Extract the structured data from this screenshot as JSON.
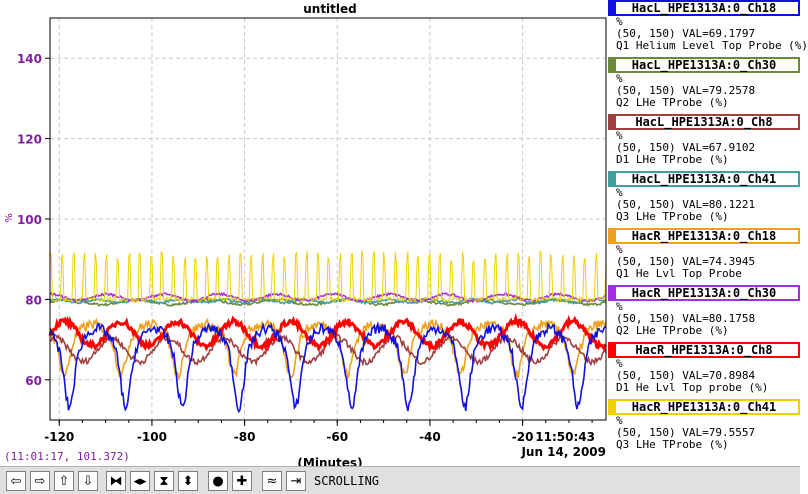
{
  "chart_data": {
    "type": "line",
    "title": "untitled",
    "ylabel": "%",
    "xlabel": "(Minutes)",
    "xlim": [
      -122,
      -2
    ],
    "ylim": [
      50,
      150
    ],
    "yticks": [
      60,
      80,
      100,
      120,
      140
    ],
    "xticks": [
      -120,
      -100,
      -80,
      -60,
      -40,
      -20
    ],
    "grid": true,
    "time_label": "11:50:43",
    "date_label": "Jun 14, 2009",
    "series": [
      {
        "name": "HacL_HPE1313A:0_Ch18",
        "color": "#1010e0",
        "shape": "dip",
        "base": 70,
        "amp": 14,
        "period": 12.2,
        "phase": 5
      },
      {
        "name": "HacL_HPE1313A:0_Ch30",
        "color": "#6a8a3a",
        "shape": "flat",
        "base": 79.3,
        "amp": 0.6,
        "period": 15,
        "phase": 0
      },
      {
        "name": "HacL_HPE1313A:0_Ch8",
        "color": "#a04040",
        "shape": "wave",
        "base": 67.5,
        "amp": 3,
        "period": 12.2,
        "phase": 2
      },
      {
        "name": "HacL_HPE1313A:0_Ch41",
        "color": "#40a0a0",
        "shape": "flat",
        "base": 79.6,
        "amp": 0.4,
        "period": 9,
        "phase": 1
      },
      {
        "name": "HacR_HPE1313A:0_Ch18",
        "color": "#f0a020",
        "shape": "dip",
        "base": 72,
        "amp": 9,
        "period": 12.2,
        "phase": 6
      },
      {
        "name": "HacR_HPE1313A:0_Ch30",
        "color": "#a030e0",
        "shape": "flat",
        "base": 80.5,
        "amp": 0.8,
        "period": 12.2,
        "phase": 3
      },
      {
        "name": "HacR_HPE1313A:0_Ch8",
        "color": "#ff0000",
        "shape": "wave",
        "base": 71.5,
        "amp": 3,
        "period": 12.2,
        "phase": 0
      },
      {
        "name": "HacR_HPE1313A:0_Ch41",
        "color": "#f0d000",
        "shape": "spike",
        "base": 80,
        "amp": 12,
        "period": 2.4,
        "phase": 0
      }
    ]
  },
  "legend": [
    {
      "name": "HacL_HPE1313A:0_Ch18",
      "color": "#1010e0",
      "unit": "%",
      "val": "(50, 150) VAL=69.1797",
      "desc": "Q1 Helium Level Top Probe (%)"
    },
    {
      "name": "HacL_HPE1313A:0_Ch30",
      "color": "#6a8a3a",
      "unit": "%",
      "val": "(50, 150) VAL=79.2578",
      "desc": "Q2 LHe TProbe (%)"
    },
    {
      "name": "HacL_HPE1313A:0_Ch8",
      "color": "#a04040",
      "unit": "%",
      "val": "(50, 150) VAL=67.9102",
      "desc": "D1 LHe TProbe (%)"
    },
    {
      "name": "HacL_HPE1313A:0_Ch41",
      "color": "#40a0a0",
      "unit": "%",
      "val": "(50, 150) VAL=80.1221",
      "desc": "Q3 LHe TProbe (%)"
    },
    {
      "name": "HacR_HPE1313A:0_Ch18",
      "color": "#f0a020",
      "unit": "%",
      "val": "(50, 150) VAL=74.3945",
      "desc": "Q1 He Lvl Top Probe"
    },
    {
      "name": "HacR_HPE1313A:0_Ch30",
      "color": "#a030e0",
      "unit": "%",
      "val": "(50, 150) VAL=80.1758",
      "desc": "Q2 LHe TProbe (%)"
    },
    {
      "name": "HacR_HPE1313A:0_Ch8",
      "color": "#ff0000",
      "unit": "%",
      "val": "(50, 150) VAL=70.8984",
      "desc": "D1 He Lvl Top probe (%)"
    },
    {
      "name": "HacR_HPE1313A:0_Ch41",
      "color": "#f0d000",
      "unit": "%",
      "val": "(50, 150) VAL=79.5557",
      "desc": "Q3 LHe TProbe (%)"
    }
  ],
  "cursor_coords": "(11:01:17, 101.372)",
  "toolbar": {
    "buttons": [
      {
        "name": "scroll-left-button",
        "glyph": "⇦"
      },
      {
        "name": "scroll-right-button",
        "glyph": "⇨"
      },
      {
        "name": "scroll-up-button",
        "glyph": "⇧"
      },
      {
        "name": "scroll-down-button",
        "glyph": "⇩"
      },
      {
        "name": "compress-horizontal-button",
        "glyph": "⧓"
      },
      {
        "name": "expand-horizontal-button",
        "glyph": "◂▸"
      },
      {
        "name": "compress-vertical-button",
        "glyph": "⧗"
      },
      {
        "name": "expand-vertical-button",
        "glyph": "⬍"
      },
      {
        "name": "zoom-out-button",
        "glyph": "●"
      },
      {
        "name": "zoom-in-button",
        "glyph": "✚"
      },
      {
        "name": "autoscale-button",
        "glyph": "≈"
      },
      {
        "name": "scroll-to-end-button",
        "glyph": "⇥"
      }
    ],
    "mode_label": "SCROLLING"
  }
}
